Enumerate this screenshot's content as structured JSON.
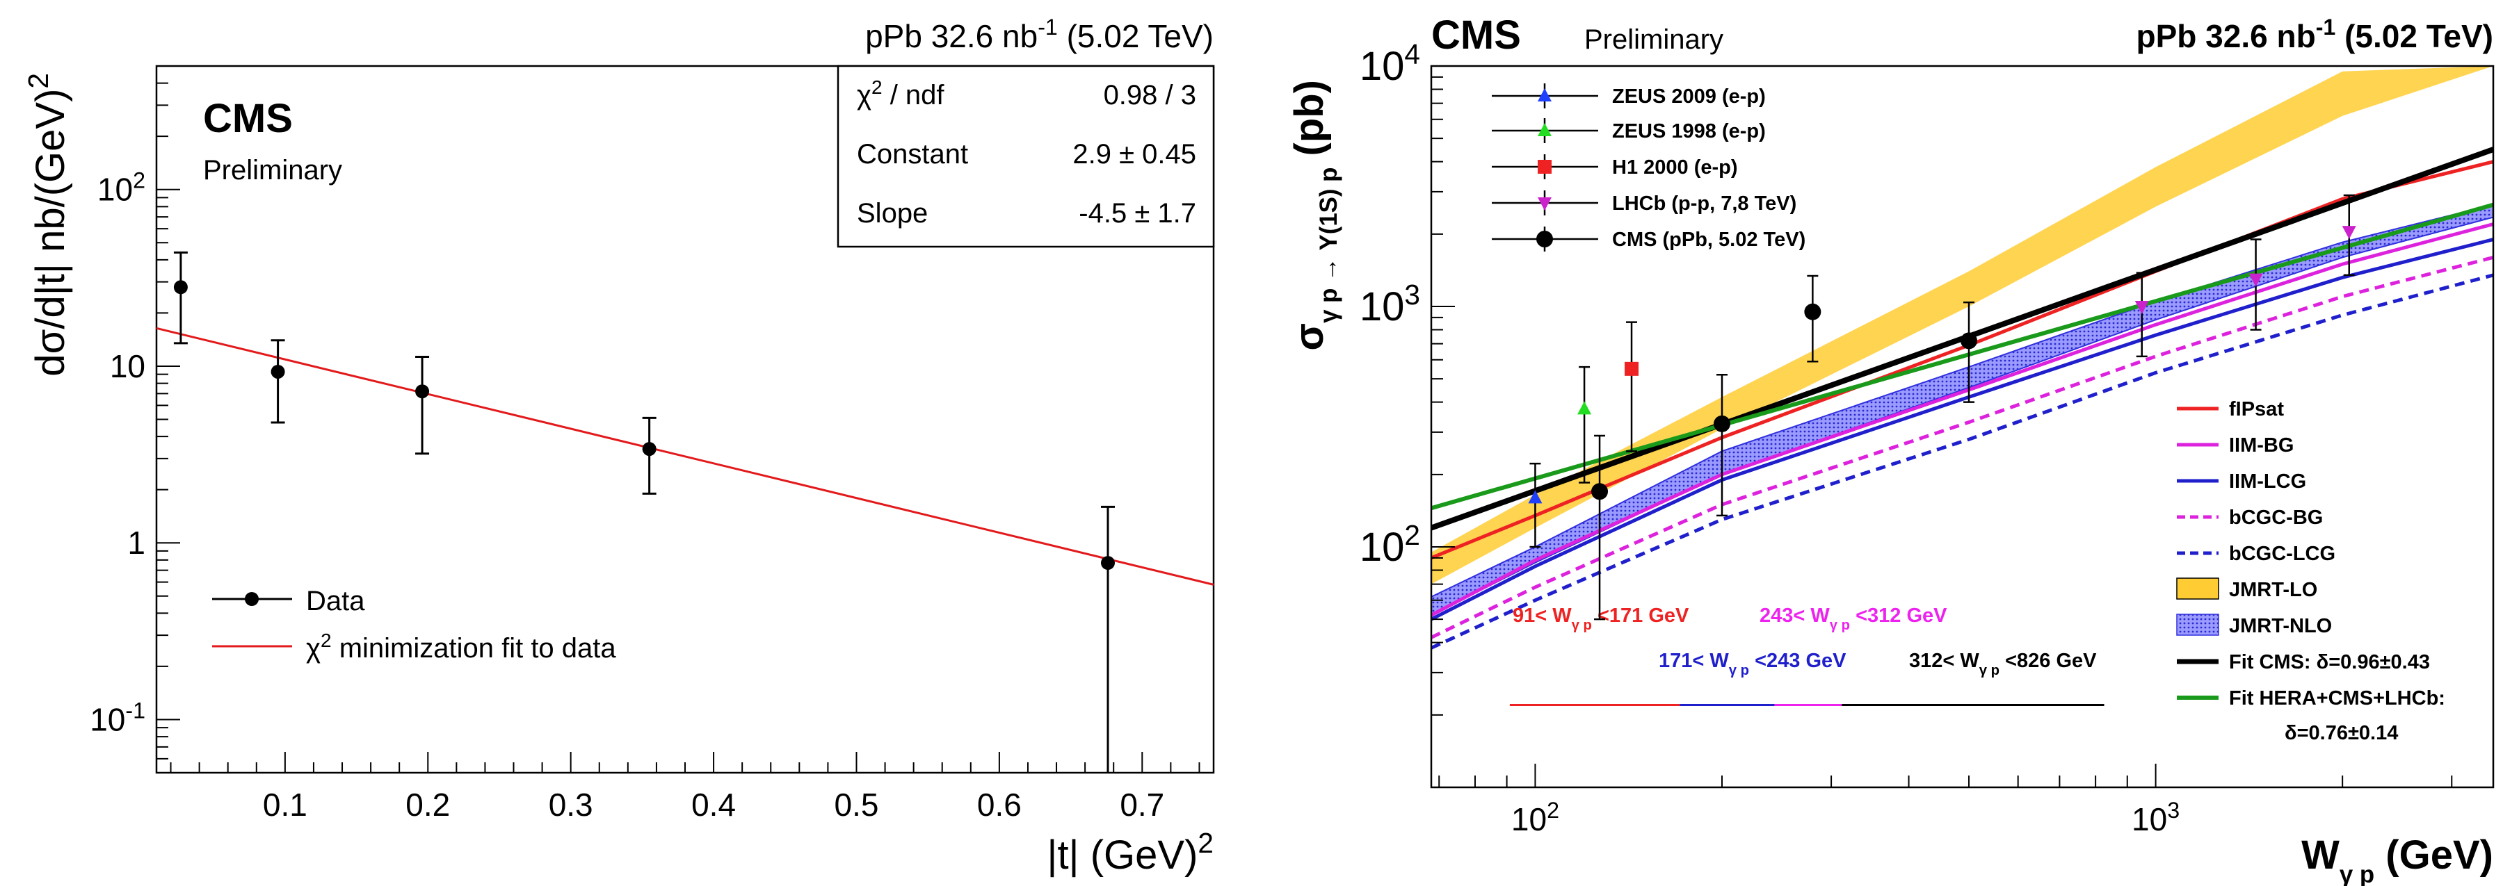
{
  "chart_data": [
    {
      "type": "scatter",
      "title": "pPb 32.6 nb⁻¹ (5.02 TeV)",
      "label_main": "CMS",
      "label_sub": "Preliminary",
      "xlabel": "|t| (GeV)²",
      "ylabel": "dσ/d|t| nb/(GeV)²",
      "xlim": [
        0.01,
        0.75
      ],
      "ylim": [
        0.05,
        500
      ],
      "yscale": "log",
      "x_ticks": [
        0.1,
        0.2,
        0.3,
        0.4,
        0.5,
        0.6,
        0.7
      ],
      "x_tick_labels": [
        "0.1",
        "0.2",
        "0.3",
        "0.4",
        "0.5",
        "0.6",
        "0.7"
      ],
      "y_ticks": [
        0.1,
        1,
        10,
        100
      ],
      "y_tick_labels": [
        "10⁻¹",
        "1",
        "10",
        "10²"
      ],
      "series": [
        {
          "name": "Data",
          "color": "#000000",
          "points": [
            {
              "x": 0.027,
              "y": 28,
              "ylo": 13.5,
              "yhi": 44
            },
            {
              "x": 0.095,
              "y": 9.3,
              "ylo": 4.8,
              "yhi": 14
            },
            {
              "x": 0.196,
              "y": 7.2,
              "ylo": 3.2,
              "yhi": 11.3
            },
            {
              "x": 0.355,
              "y": 3.4,
              "ylo": 1.9,
              "yhi": 5.1
            },
            {
              "x": 0.676,
              "y": 0.77,
              "ylo": 0.05,
              "yhi": 1.6
            }
          ]
        },
        {
          "name": "χ² minimization fit to data",
          "color": "#e31a1c",
          "fit": {
            "constant": 2.9,
            "slope": -4.5
          },
          "points": [
            {
              "x": 0.01,
              "y": 16.4
            },
            {
              "x": 0.75,
              "y": 0.58
            }
          ]
        }
      ],
      "stats_box": {
        "rows": [
          {
            "label": "χ² / ndf",
            "value": "0.98 / 3"
          },
          {
            "label": "Constant",
            "value": "2.9 ±  0.45"
          },
          {
            "label": "Slope",
            "value": "-4.5 ±   1.7"
          }
        ]
      },
      "legend": [
        "Data",
        "χ² minimization fit to data"
      ],
      "legend_position": "bottom-left"
    },
    {
      "type": "line",
      "title": "pPb 32.6 nb⁻¹ (5.02 TeV)",
      "label_main": "CMS",
      "label_sub": "Preliminary",
      "xlabel": "W γ p (GeV)",
      "ylabel": "σ γ p → Υ(1S) p (pb)",
      "xscale": "log",
      "yscale": "log",
      "xlim": [
        68,
        3500
      ],
      "ylim": [
        10,
        10000
      ],
      "x_ticks": [
        100,
        1000
      ],
      "x_tick_labels": [
        "10²",
        "10³"
      ],
      "y_ticks": [
        100,
        1000,
        10000
      ],
      "y_tick_labels": [
        "10²",
        "10³",
        "10⁴"
      ],
      "data_series": [
        {
          "name": "ZEUS 2009 (e-p)",
          "color": "#1f3fff",
          "marker": "triangle-up",
          "points": [
            {
              "x": 100,
              "y": 160,
              "ylo": 100,
              "yhi": 222
            }
          ]
        },
        {
          "name": "ZEUS 1998 (e-p)",
          "color": "#22dd22",
          "marker": "triangle-up",
          "points": [
            {
              "x": 120,
              "y": 375,
              "ylo": 185,
              "yhi": 560
            }
          ]
        },
        {
          "name": "H1 2000 (e-p)",
          "color": "#ee2222",
          "marker": "square",
          "points": [
            {
              "x": 143,
              "y": 550,
              "ylo": 250,
              "yhi": 860
            }
          ]
        },
        {
          "name": "LHCb (p-p, 7,8 TeV)",
          "color": "#cc22cc",
          "marker": "triangle-down",
          "points": [
            {
              "x": 950,
              "y": 1000,
              "ylo": 620,
              "yhi": 1380
            },
            {
              "x": 1450,
              "y": 1300,
              "ylo": 800,
              "yhi": 1900
            },
            {
              "x": 2050,
              "y": 2050,
              "ylo": 1350,
              "yhi": 2900
            }
          ]
        },
        {
          "name": "CMS (pPb, 5.02 TeV)",
          "color": "#000000",
          "marker": "circle",
          "points": [
            {
              "x": 127,
              "y": 170,
              "ylo": 50,
              "yhi": 290
            },
            {
              "x": 200,
              "y": 325,
              "ylo": 135,
              "yhi": 520
            },
            {
              "x": 280,
              "y": 950,
              "ylo": 590,
              "yhi": 1340
            },
            {
              "x": 500,
              "y": 720,
              "ylo": 400,
              "yhi": 1040
            }
          ]
        }
      ],
      "theory_series": [
        {
          "name": "fIPsat",
          "color": "#ee2222",
          "style": "solid",
          "points": [
            [
              68,
              90
            ],
            [
              100,
              135
            ],
            [
              200,
              285
            ],
            [
              500,
              690
            ],
            [
              1000,
              1400
            ],
            [
              2000,
              2800
            ],
            [
              3500,
              4000
            ]
          ]
        },
        {
          "name": "IIM-BG",
          "color": "#dd22dd",
          "style": "solid",
          "points": [
            [
              68,
              52
            ],
            [
              100,
              88
            ],
            [
              200,
              200
            ],
            [
              500,
              450
            ],
            [
              1000,
              840
            ],
            [
              2000,
              1500
            ],
            [
              3500,
              2200
            ]
          ]
        },
        {
          "name": "IIM-LCG",
          "color": "#1f1fcc",
          "style": "solid",
          "points": [
            [
              68,
              50
            ],
            [
              100,
              83
            ],
            [
              200,
              190
            ],
            [
              500,
              420
            ],
            [
              1000,
              760
            ],
            [
              2000,
              1320
            ],
            [
              3500,
              1900
            ]
          ]
        },
        {
          "name": "bCGC-BG",
          "color": "#dd22dd",
          "style": "dashed",
          "points": [
            [
              68,
              42
            ],
            [
              100,
              68
            ],
            [
              200,
              150
            ],
            [
              500,
              330
            ],
            [
              1000,
              620
            ],
            [
              2000,
              1100
            ],
            [
              3500,
              1600
            ]
          ]
        },
        {
          "name": "bCGC-LCG",
          "color": "#1f1fcc",
          "style": "dashed",
          "points": [
            [
              68,
              38
            ],
            [
              100,
              60
            ],
            [
              200,
              130
            ],
            [
              500,
              280
            ],
            [
              1000,
              530
            ],
            [
              2000,
              920
            ],
            [
              3500,
              1350
            ]
          ]
        }
      ],
      "bands": [
        {
          "name": "JMRT-LO",
          "color": "#ffcc33",
          "lower": [
            [
              68,
              70
            ],
            [
              100,
              120
            ],
            [
              200,
              310
            ],
            [
              500,
              1000
            ],
            [
              1000,
              2600
            ],
            [
              2000,
              6200
            ],
            [
              3500,
              10000
            ]
          ],
          "upper": [
            [
              68,
              95
            ],
            [
              100,
              165
            ],
            [
              200,
              420
            ],
            [
              500,
              1400
            ],
            [
              1000,
              3800
            ],
            [
              2000,
              9500
            ],
            [
              3500,
              10000
            ]
          ]
        },
        {
          "name": "JMRT-NLO",
          "color": "#5b5bff",
          "lower": [
            [
              68,
              52
            ],
            [
              100,
              86
            ],
            [
              200,
              200
            ],
            [
              500,
              460
            ],
            [
              1000,
              880
            ],
            [
              2000,
              1600
            ],
            [
              3500,
              2350
            ]
          ],
          "upper": [
            [
              68,
              62
            ],
            [
              100,
              100
            ],
            [
              200,
              250
            ],
            [
              500,
              560
            ],
            [
              1000,
              1050
            ],
            [
              2000,
              1850
            ],
            [
              3500,
              2650
            ]
          ]
        }
      ],
      "fits": [
        {
          "name": "Fit CMS: δ=0.96±0.43",
          "color": "#000000",
          "points": [
            [
              68,
              120
            ],
            [
              3500,
              4500
            ]
          ]
        },
        {
          "name": "Fit HERA+CMS+LHCb:",
          "name_line2": "δ=0.76±0.14",
          "color": "#1a9a1a",
          "points": [
            [
              68,
              145
            ],
            [
              3500,
              2650
            ]
          ]
        }
      ],
      "w_ranges": [
        {
          "label": "91< W γ p <171 GeV",
          "color": "#ee2222",
          "range": [
            91,
            171
          ],
          "row": 1
        },
        {
          "label": "171< W γ p <243 GeV",
          "color": "#1f1fcc",
          "range": [
            171,
            243
          ],
          "row": 2
        },
        {
          "label": "243< W γ p <312 GeV",
          "color": "#ee22ee",
          "range": [
            243,
            312
          ],
          "row": 1
        },
        {
          "label": "312< W γ p <826 GeV",
          "color": "#000000",
          "range": [
            312,
            826
          ],
          "row": 2
        }
      ],
      "legend_data": [
        "ZEUS 2009 (e-p)",
        "ZEUS 1998 (e-p)",
        "H1 2000 (e-p)",
        "LHCb (p-p, 7,8 TeV)",
        "CMS (pPb, 5.02 TeV)"
      ],
      "legend_theory": [
        "fIPsat",
        "IIM-BG",
        "IIM-LCG",
        "bCGC-BG",
        "bCGC-LCG",
        "JMRT-LO",
        "JMRT-NLO",
        "Fit CMS: δ=0.96±0.43",
        "Fit HERA+CMS+LHCb:"
      ],
      "legend_position": "top-left / right-middle"
    }
  ]
}
